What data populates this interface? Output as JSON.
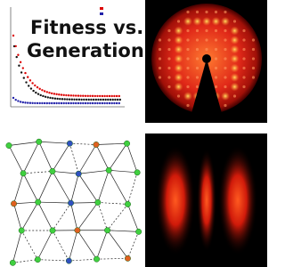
{
  "title": {
    "line1": "Fitness  vs.",
    "line2": "Generation"
  }
}
